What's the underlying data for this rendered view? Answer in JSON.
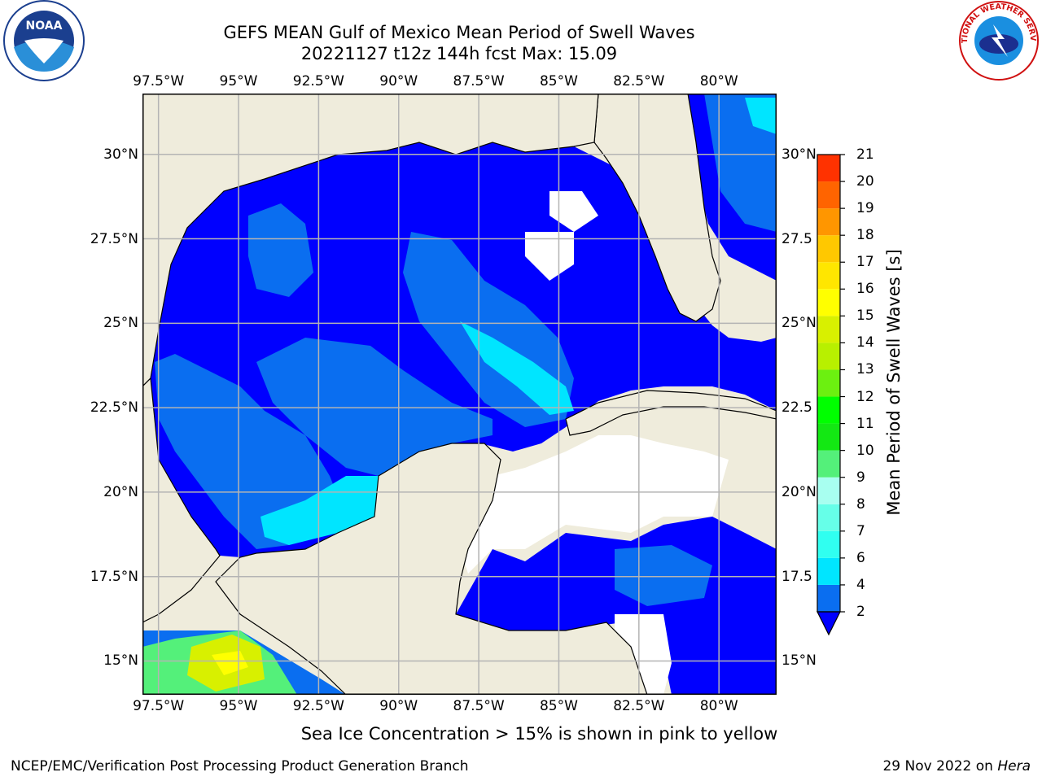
{
  "header": {
    "title_line1": "GEFS MEAN Gulf of Mexico Mean Period of Swell Waves",
    "title_line2": "20221127 t12z 144h fcst   Max: 15.09"
  },
  "map": {
    "lon_ticks": [
      "97.5°W",
      "95°W",
      "92.5°W",
      "90°W",
      "87.5°W",
      "85°W",
      "82.5°W",
      "80°W"
    ],
    "lon_values": [
      -97.5,
      -95,
      -92.5,
      -90,
      -87.5,
      -85,
      -82.5,
      -80
    ],
    "lat_ticks": [
      "30°N",
      "27.5°N",
      "25°N",
      "22.5°N",
      "20°N",
      "17.5°N",
      "15°N"
    ],
    "lat_ticks_right": [
      "30°N",
      "27.5",
      "25°N",
      "22.5",
      "20°N",
      "17.5",
      "15°N"
    ],
    "lat_values": [
      30,
      27.5,
      25,
      22.5,
      20,
      17.5,
      15
    ],
    "lon_range": [
      -98,
      -78.2
    ],
    "lat_range": [
      14,
      31.8
    ],
    "land_color": "#efecdc",
    "ocean_color": "#0000ff"
  },
  "colorbar": {
    "label": "Mean Period of Swell Waves [s]",
    "ticks": [
      "2",
      "4",
      "6",
      "7",
      "8",
      "9",
      "10",
      "11",
      "12",
      "13",
      "14",
      "15",
      "16",
      "17",
      "18",
      "19",
      "20",
      "21"
    ],
    "colors": [
      "#0a6ef0",
      "#00e5ff",
      "#30fff0",
      "#66ffe8",
      "#a8fff0",
      "#54f07a",
      "#13e813",
      "#00ff00",
      "#6cf010",
      "#b8f000",
      "#d8f000",
      "#ffff00",
      "#ffe600",
      "#ffc800",
      "#ff9600",
      "#ff6400",
      "#ff3200"
    ],
    "extend_color": "#0000ff"
  },
  "note": "Sea Ice Concentration > 15% is shown in pink to yellow",
  "footer": {
    "left": "NCEP/EMC/Verification Post Processing Product Generation Branch",
    "right_date": "29 Nov 2022 on ",
    "right_host": "Hera"
  },
  "logos": {
    "noaa_text": "NOAA",
    "nws_text": "NATIONAL WEATHER SERVICE"
  }
}
